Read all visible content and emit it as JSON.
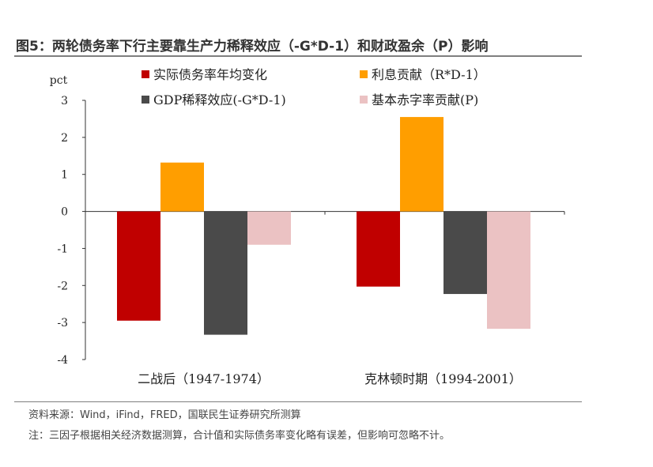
{
  "title": "图5：两轮债务率下行主要靠生产力稀释效应（-G*D-1）和财政盈余（P）影响",
  "source": "资料来源：Wind，iFind，FRED，国联民生证券研究所测算",
  "note": "注：三因子根据相关经济数据测算，合计值和实际债务率变化略有误差，但影响可忽略不计。",
  "chart_data": {
    "type": "bar",
    "ylabel": "pct",
    "ylim": [
      -4,
      3
    ],
    "yticks": [
      3,
      2,
      1,
      0,
      -1,
      -2,
      -3,
      -4
    ],
    "categories": [
      "二战后（1947-1974）",
      "克林顿时期（1994-2001）"
    ],
    "series": [
      {
        "name": "实际债务率年均变化",
        "color": "#c00000",
        "values": [
          -2.95,
          -2.03
        ]
      },
      {
        "name": "利息贡献（R*D-1）",
        "color": "#ff9e00",
        "values": [
          1.32,
          2.55
        ]
      },
      {
        "name": "GDP稀释效应(-G*D-1)",
        "color": "#4a4a4a",
        "values": [
          -3.33,
          -2.23
        ]
      },
      {
        "name": "基本赤字率贡献(P)",
        "color": "#ebc2c3",
        "values": [
          -0.9,
          -3.17
        ]
      }
    ],
    "legend": "top",
    "grid": false
  }
}
